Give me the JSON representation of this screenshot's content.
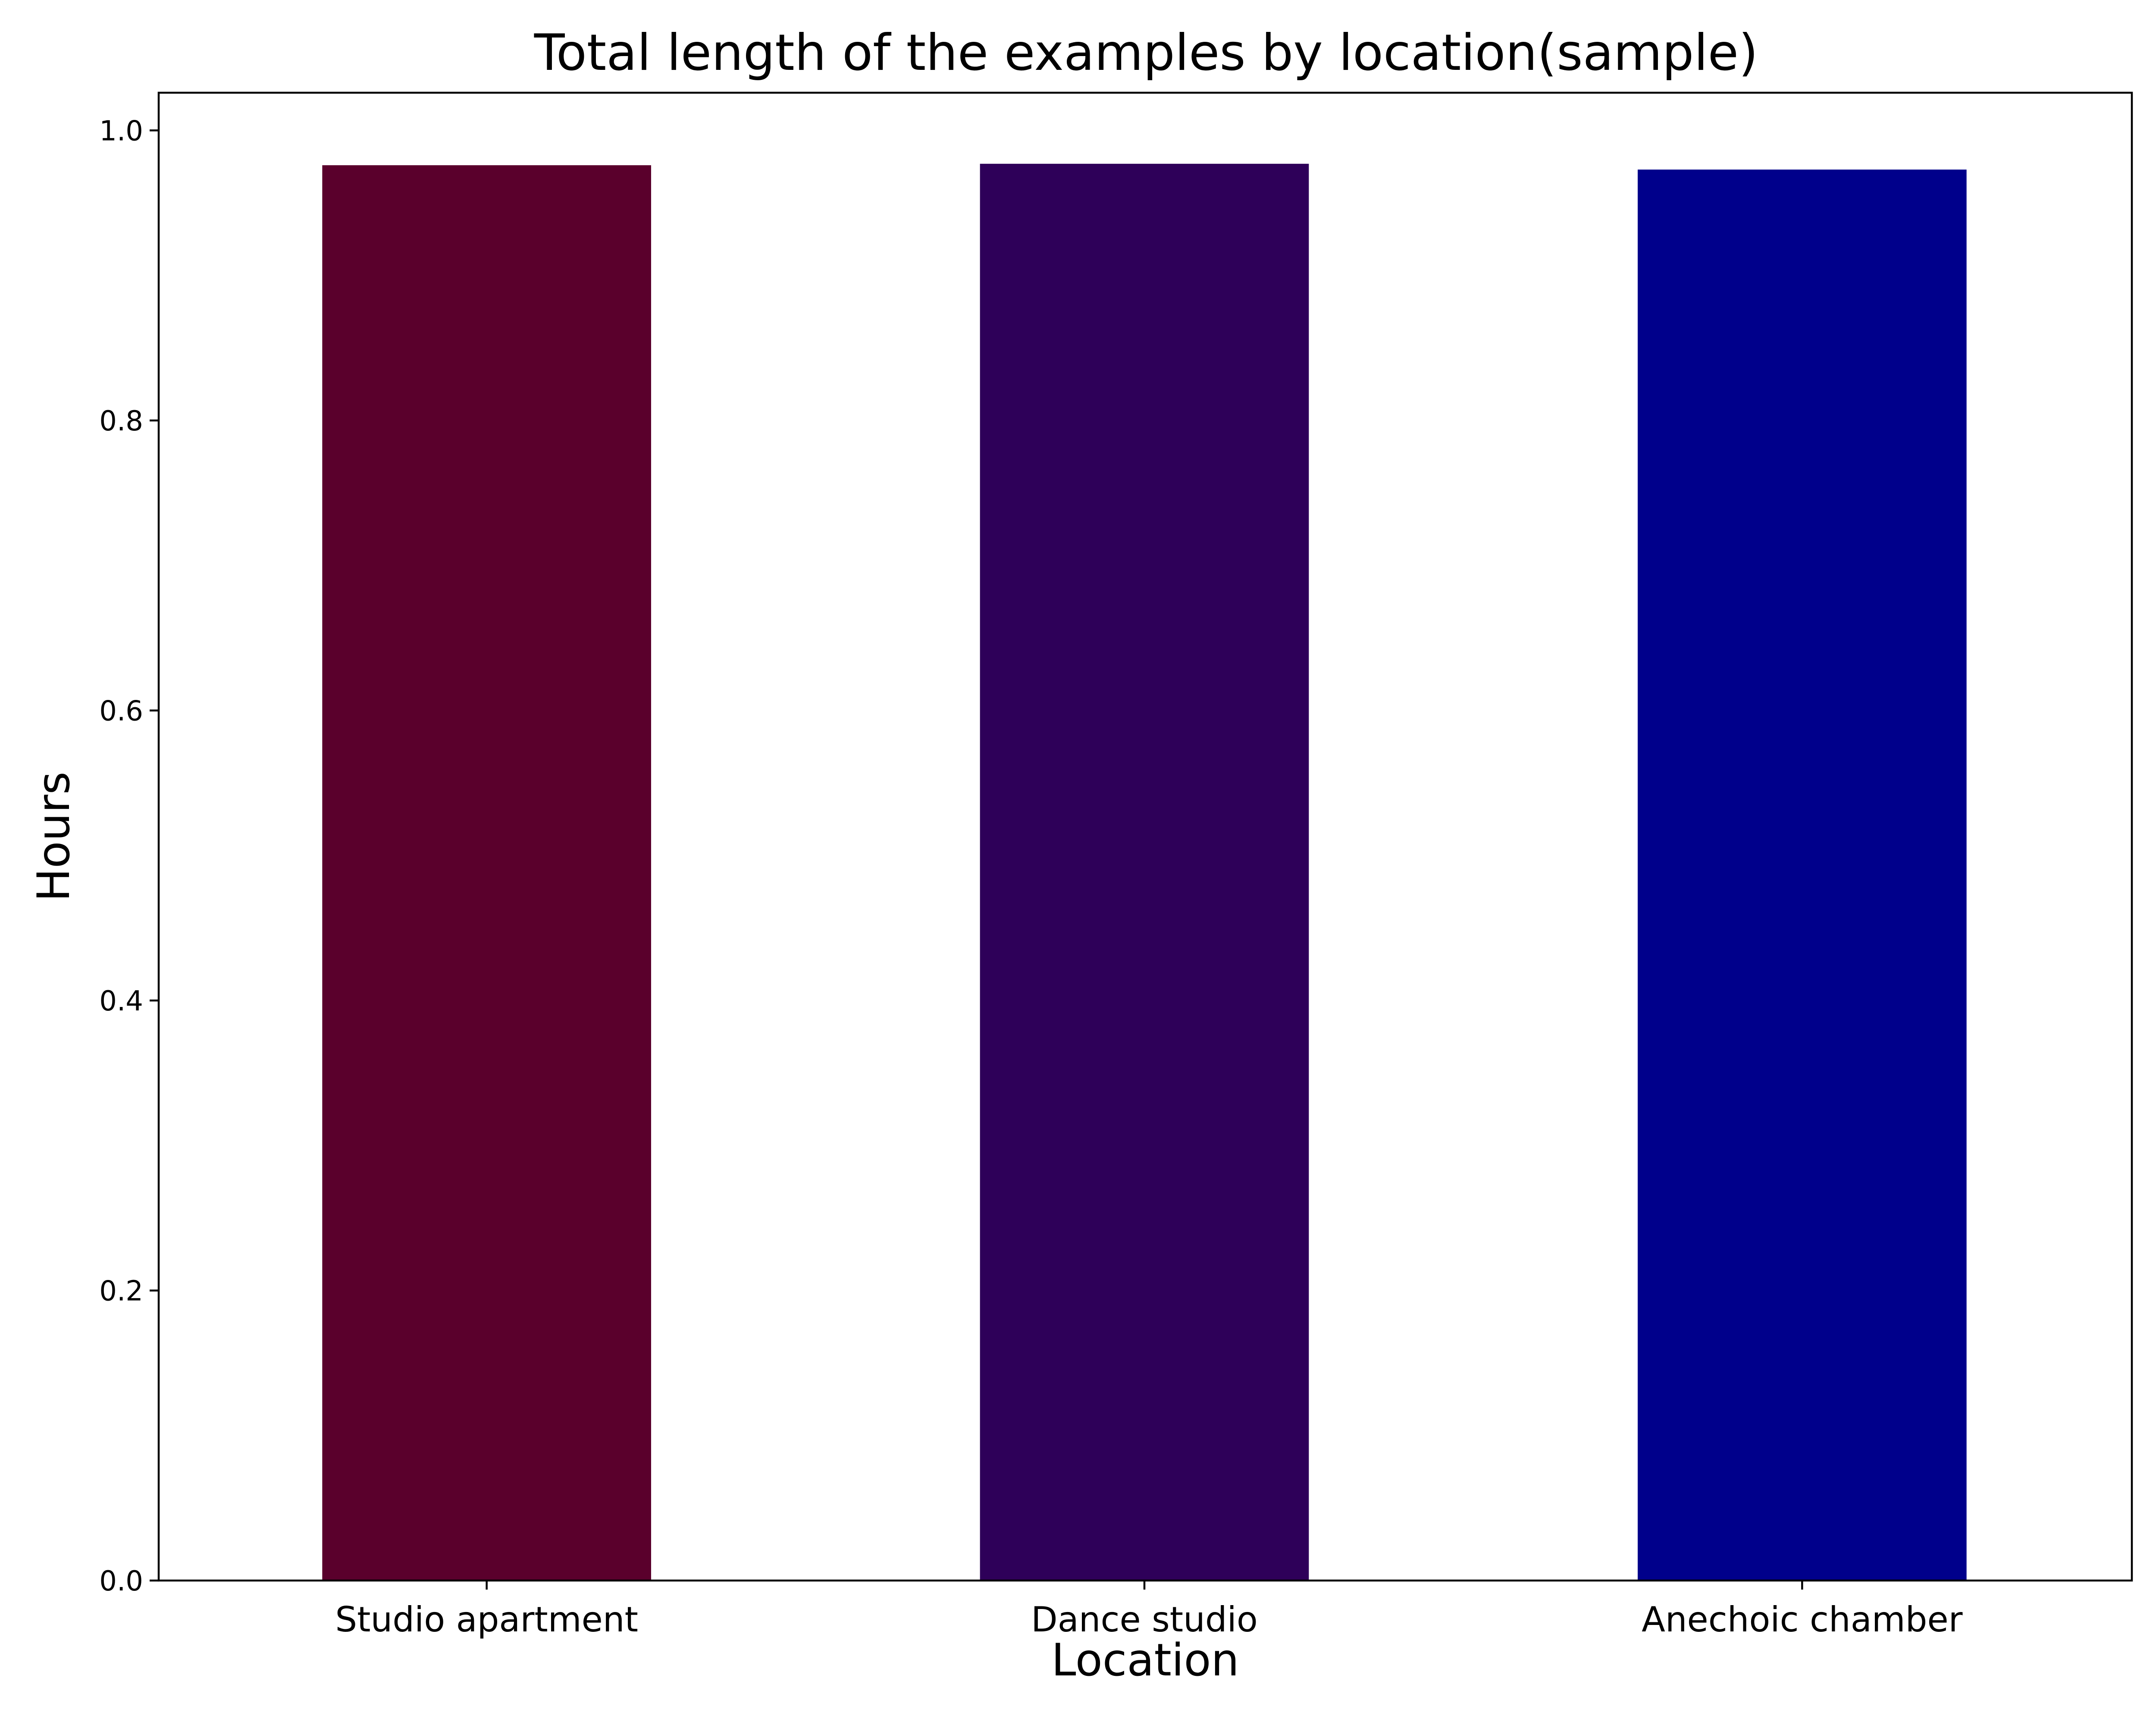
{
  "chart_data": {
    "type": "bar",
    "title": "Total length of the examples by location(sample)",
    "xlabel": "Location",
    "ylabel": "Hours",
    "categories": [
      "Studio apartment",
      "Dance studio",
      "Anechoic chamber"
    ],
    "values": [
      0.976,
      0.977,
      0.973
    ],
    "colors": [
      "#5a002c",
      "#2e0059",
      "#00008b"
    ],
    "ylim": [
      0,
      1.026
    ],
    "yticks": [
      0.0,
      0.2,
      0.4,
      0.6,
      0.8,
      1.0
    ],
    "ytick_labels": [
      "0.0",
      "0.2",
      "0.4",
      "0.6",
      "0.8",
      "1.0"
    ],
    "grid": false,
    "legend": "none"
  }
}
